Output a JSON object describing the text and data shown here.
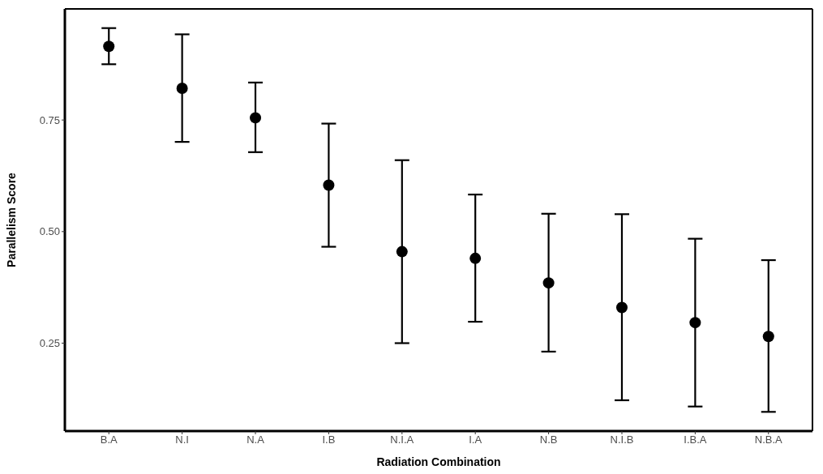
{
  "chart_data": {
    "type": "scatter",
    "xlabel": "Radiation Combination",
    "ylabel": "Parallelism Score",
    "categories": [
      "B.A",
      "N.I",
      "N.A",
      "I.B",
      "N.I.A",
      "I.A",
      "N.B",
      "N.I.B",
      "I.B.A",
      "N.B.A"
    ],
    "series": [
      {
        "color": "#000000",
        "values": [
          0.915,
          0.821,
          0.755,
          0.604,
          0.455,
          0.44,
          0.385,
          0.33,
          0.296,
          0.265
        ],
        "errors": [
          [
            0.875,
            0.956
          ],
          [
            0.701,
            0.942
          ],
          [
            0.678,
            0.834
          ],
          [
            0.466,
            0.742
          ],
          [
            0.25,
            0.66
          ],
          [
            0.298,
            0.583
          ],
          [
            0.231,
            0.54
          ],
          [
            0.122,
            0.539
          ],
          [
            0.108,
            0.484
          ],
          [
            0.096,
            0.436
          ]
        ]
      }
    ],
    "ylim": [
      0.053,
      0.999
    ],
    "yticks": [
      {
        "value": 0.25,
        "label": "0.25"
      },
      {
        "value": 0.5,
        "label": "0.50"
      },
      {
        "value": 0.75,
        "label": "0.75"
      }
    ],
    "legend": false,
    "marker": "circle"
  }
}
